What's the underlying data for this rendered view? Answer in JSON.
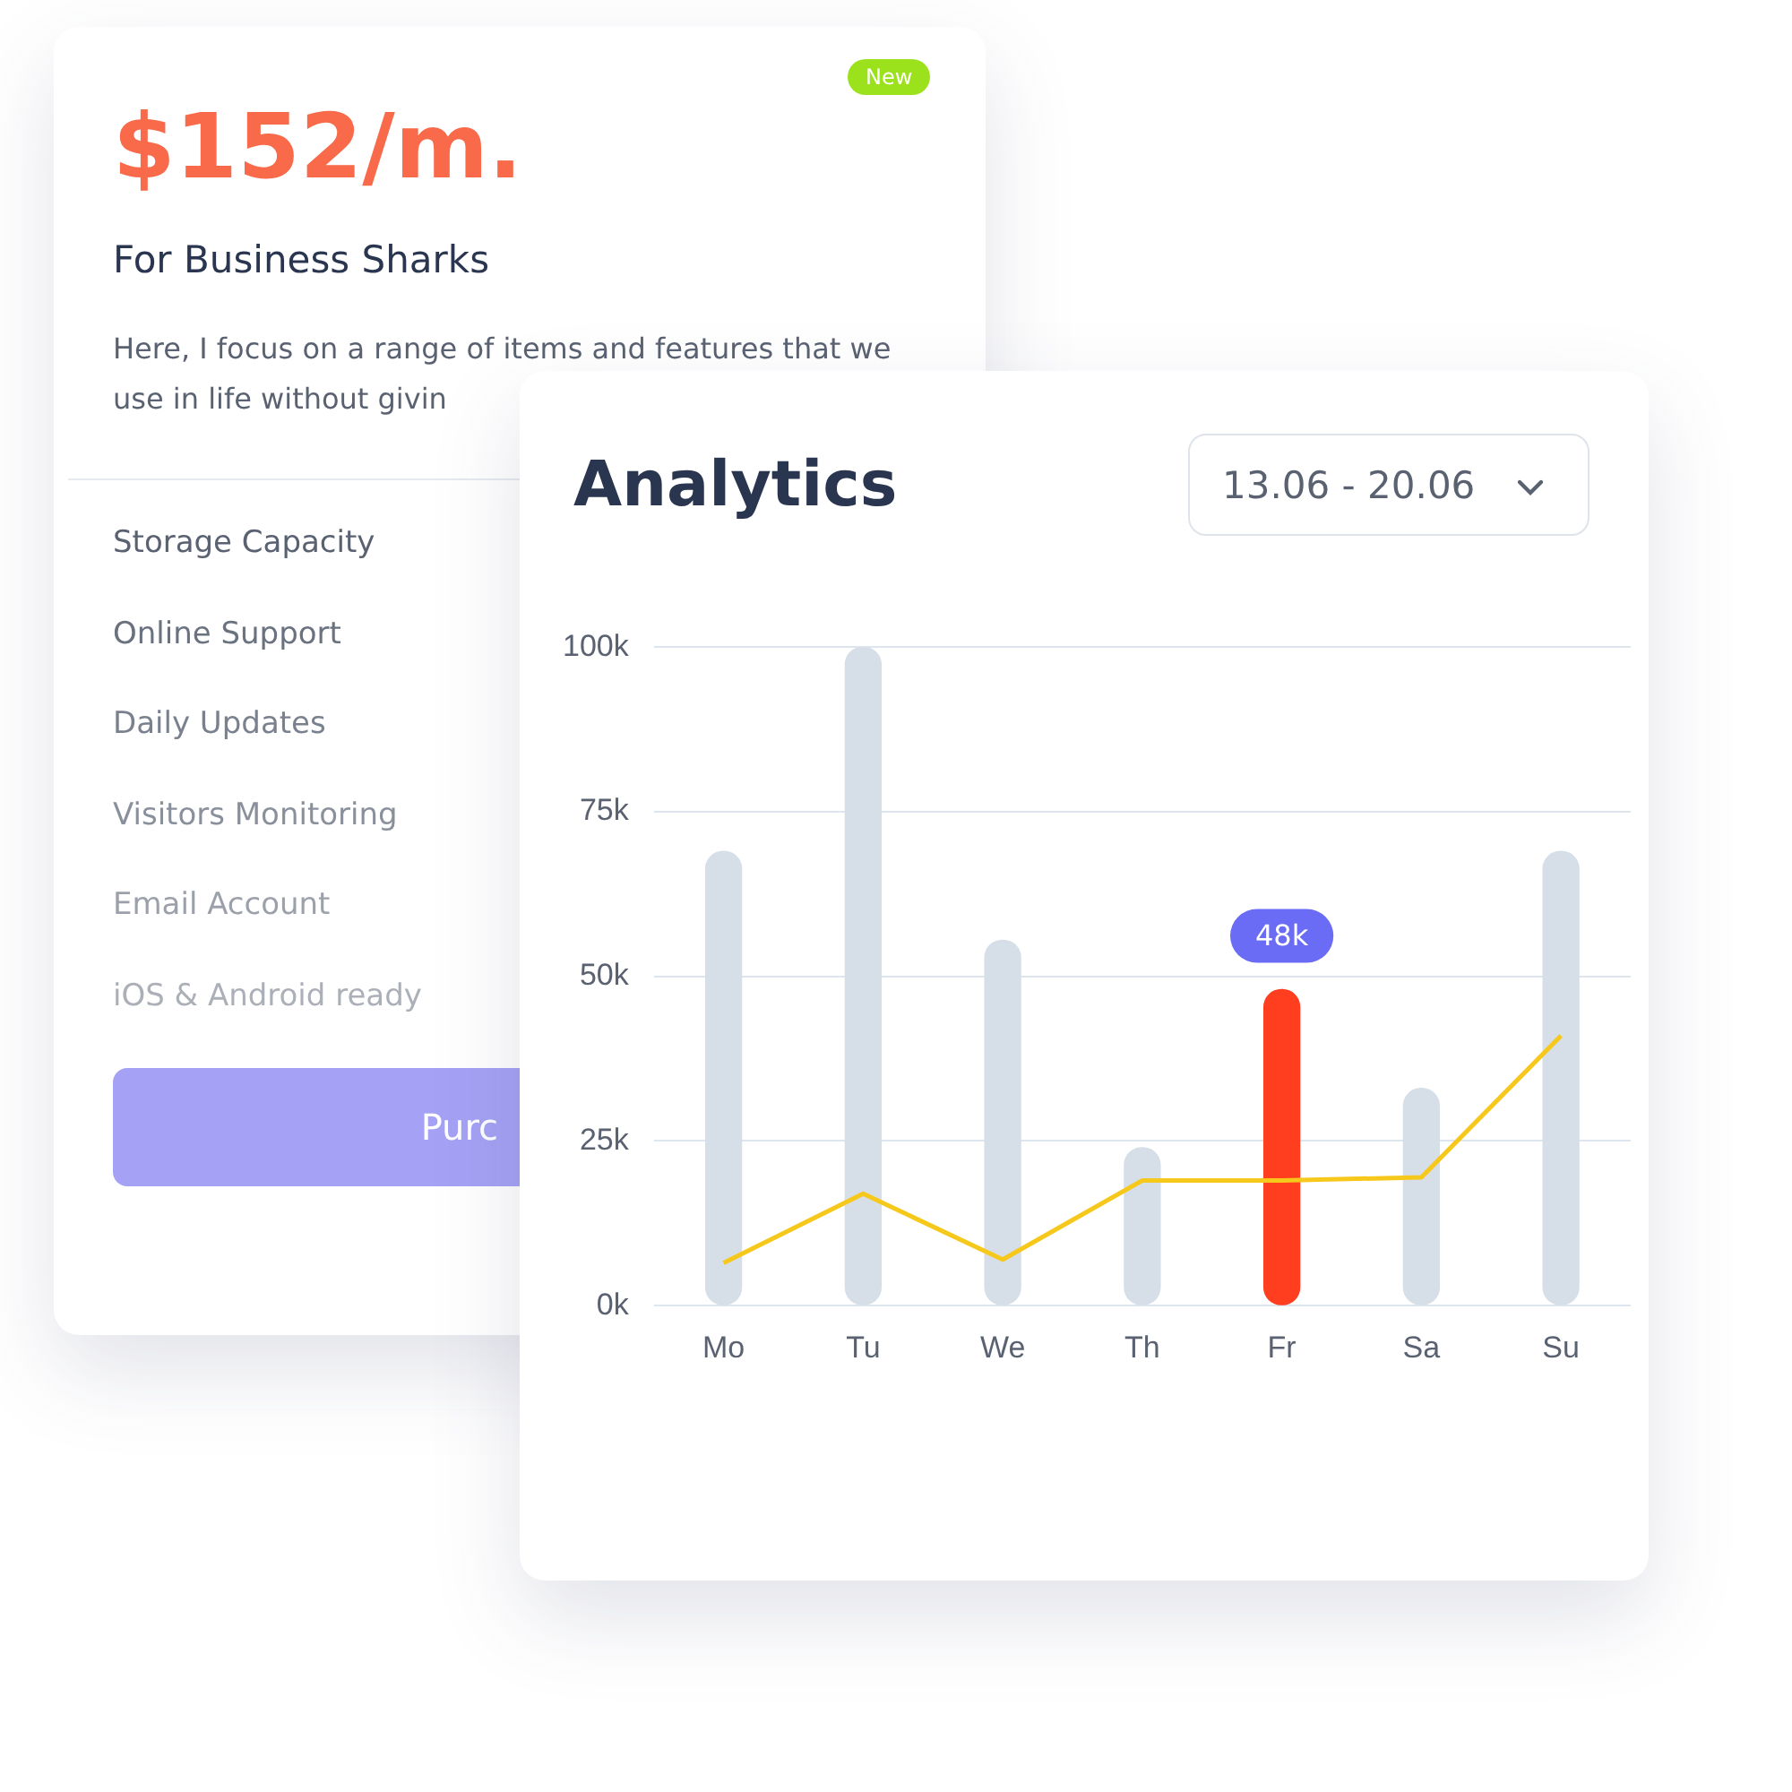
{
  "chart_data": [
    {
      "type": "other",
      "title": "$152/m.",
      "subtitle": "For Business Sharks",
      "annotations": [
        "New",
        "Here, I focus on a range of items and features that we use in life without givin",
        "Storage Capacity",
        "Online Support",
        "Daily Updates",
        "Visitors Monitoring",
        "Email Account",
        "iOS & Android ready",
        "Purc"
      ]
    },
    {
      "type": "bar",
      "title": "Analytics",
      "annotations": [
        "13.06 - 20.06"
      ],
      "categories": [
        "Mo",
        "Tu",
        "We",
        "Th",
        "Fr",
        "Sa",
        "Su"
      ],
      "ylim": [
        0,
        100
      ],
      "yticks": [
        {
          "value": 0,
          "label": "0k"
        },
        {
          "value": 25,
          "label": "25k"
        },
        {
          "value": 50,
          "label": "50k"
        },
        {
          "value": 75,
          "label": "75k"
        },
        {
          "value": 100,
          "label": "100k"
        }
      ],
      "grid": "y",
      "legend": false,
      "marker": "none",
      "series": [
        {
          "type": "bar",
          "colors": [
            "#d6dfe7",
            "#d6dfe7",
            "#d6dfe7",
            "#d6dfe7",
            "#ff3d1f",
            "#d6dfe7",
            "#d6dfe7"
          ],
          "values": [
            69,
            100,
            55.5,
            24,
            48,
            33,
            69
          ],
          "value_labels": [
            null,
            null,
            null,
            null,
            "48k",
            null,
            null
          ]
        },
        {
          "type": "line",
          "color": "#f7c81c",
          "values": [
            6.5,
            17,
            7,
            19,
            19,
            19.5,
            41
          ]
        }
      ]
    }
  ]
}
